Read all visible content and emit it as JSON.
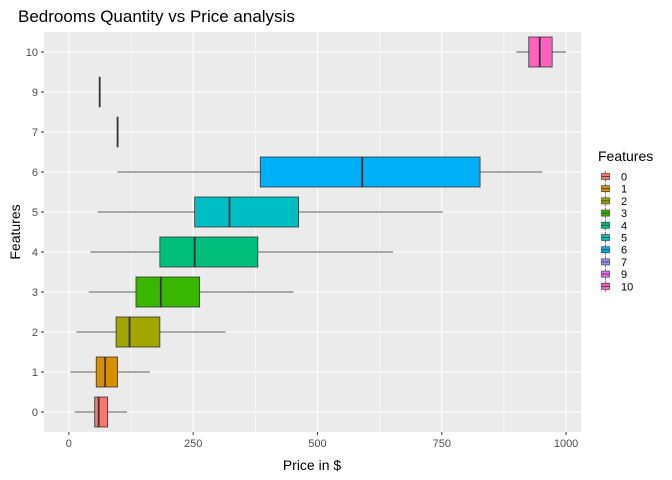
{
  "chart_data": {
    "type": "boxplot",
    "orientation": "horizontal",
    "title": "Bedrooms Quantity vs Price analysis",
    "xlabel": "Price in $",
    "ylabel": "Features",
    "xlim": [
      -50,
      1030
    ],
    "x_ticks": [
      0,
      250,
      500,
      750,
      1000
    ],
    "x_minor_ticks": [
      125,
      375,
      625,
      875
    ],
    "grid": true,
    "legend_title": "Features",
    "legend_position": "right",
    "categories": [
      {
        "label": "0",
        "color": "#F8766D",
        "whisker_low": 12,
        "q1": 52,
        "median": 60,
        "q3": 78,
        "whisker_high": 117
      },
      {
        "label": "1",
        "color": "#D89000",
        "whisker_low": 3,
        "q1": 55,
        "median": 73,
        "q3": 98,
        "whisker_high": 163
      },
      {
        "label": "2",
        "color": "#A3A500",
        "whisker_low": 15,
        "q1": 95,
        "median": 122,
        "q3": 183,
        "whisker_high": 315
      },
      {
        "label": "3",
        "color": "#39B600",
        "whisker_low": 40,
        "q1": 135,
        "median": 185,
        "q3": 263,
        "whisker_high": 452
      },
      {
        "label": "4",
        "color": "#00BF7D",
        "whisker_low": 43,
        "q1": 183,
        "median": 253,
        "q3": 380,
        "whisker_high": 652
      },
      {
        "label": "5",
        "color": "#00BFC4",
        "whisker_low": 58,
        "q1": 253,
        "median": 323,
        "q3": 462,
        "whisker_high": 752
      },
      {
        "label": "6",
        "color": "#00B0F6",
        "whisker_low": 98,
        "q1": 385,
        "median": 590,
        "q3": 827,
        "whisker_high": 952
      },
      {
        "label": "7",
        "color": "#9590FF",
        "whisker_low": 98,
        "q1": 98,
        "median": 98,
        "q3": 98,
        "whisker_high": 98
      },
      {
        "label": "9",
        "color": "#E76BF3",
        "whisker_low": 62,
        "q1": 62,
        "median": 62,
        "q3": 62,
        "whisker_high": 62
      },
      {
        "label": "10",
        "color": "#FF62BC",
        "whisker_low": 900,
        "q1": 925,
        "median": 947,
        "q3": 972,
        "whisker_high": 1000
      }
    ]
  }
}
